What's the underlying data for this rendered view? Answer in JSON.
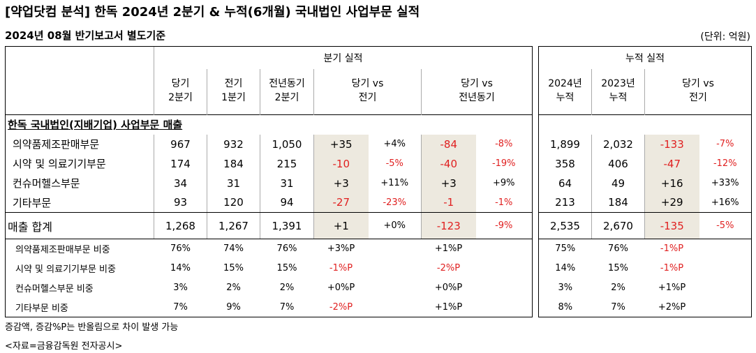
{
  "title": "[약업닷컴 분석] 한독 2024년 2분기 & 누적(6개월) 국내법인 사업부문 실적",
  "subtitle": "2024년 08월 반기보고서 별도기준",
  "unit": "(단위: 억원)",
  "quarter": {
    "group_header": "분기 실적",
    "col_headers": [
      {
        "line1": "당기",
        "line2": "2분기"
      },
      {
        "line1": "전기",
        "line2": "1분기"
      },
      {
        "line1": "전년동기",
        "line2": "2분기"
      },
      {
        "line1": "당기 vs",
        "line2": "전기"
      },
      {
        "line1": "당기 vs",
        "line2": "전년동기"
      }
    ]
  },
  "cumulative": {
    "group_header": "누적 실적",
    "col_headers": [
      {
        "line1": "2024년",
        "line2": "누적"
      },
      {
        "line1": "2023년",
        "line2": "누적"
      },
      {
        "line1": "당기 vs",
        "line2": "전기"
      }
    ]
  },
  "section_header": "한독 국내법인(지배기업) 사업부문 매출",
  "rows": [
    {
      "label": "의약품제조판매부문",
      "q_cur": "967",
      "q_prev": "932",
      "q_yoy": "1,050",
      "d_qoq": "+35",
      "p_qoq": "+4%",
      "d_yoy": "-84",
      "p_yoy": "-8%",
      "c_cur": "1,899",
      "c_prev": "2,032",
      "c_d": "-133",
      "c_p": "-7%"
    },
    {
      "label": "시약 및 의료기기부문",
      "q_cur": "174",
      "q_prev": "184",
      "q_yoy": "215",
      "d_qoq": "-10",
      "p_qoq": "-5%",
      "d_yoy": "-40",
      "p_yoy": "-19%",
      "c_cur": "358",
      "c_prev": "406",
      "c_d": "-47",
      "c_p": "-12%"
    },
    {
      "label": "컨슈머헬스부문",
      "q_cur": "34",
      "q_prev": "31",
      "q_yoy": "31",
      "d_qoq": "+3",
      "p_qoq": "+11%",
      "d_yoy": "+3",
      "p_yoy": "+9%",
      "c_cur": "64",
      "c_prev": "49",
      "c_d": "+16",
      "c_p": "+33%"
    },
    {
      "label": "기타부문",
      "q_cur": "93",
      "q_prev": "120",
      "q_yoy": "94",
      "d_qoq": "-27",
      "p_qoq": "-23%",
      "d_yoy": "-1",
      "p_yoy": "-1%",
      "c_cur": "213",
      "c_prev": "184",
      "c_d": "+29",
      "c_p": "+16%"
    }
  ],
  "total": {
    "label": "매출 합계",
    "q_cur": "1,268",
    "q_prev": "1,267",
    "q_yoy": "1,391",
    "d_qoq": "+1",
    "p_qoq": "+0%",
    "d_yoy": "-123",
    "p_yoy": "-9%",
    "c_cur": "2,535",
    "c_prev": "2,670",
    "c_d": "-135",
    "c_p": "-5%"
  },
  "ratios": [
    {
      "label": "의약품제조판매부문 비중",
      "q_cur": "76%",
      "q_prev": "74%",
      "q_yoy": "76%",
      "d_qoq": "+3%P",
      "d_yoy": "+1%P",
      "c_cur": "75%",
      "c_prev": "76%",
      "c_d": "-1%P"
    },
    {
      "label": "시약 및 의료기기부문 비중",
      "q_cur": "14%",
      "q_prev": "15%",
      "q_yoy": "15%",
      "d_qoq": "-1%P",
      "d_yoy": "-2%P",
      "c_cur": "14%",
      "c_prev": "15%",
      "c_d": "-1%P"
    },
    {
      "label": "컨슈머헬스부문 비중",
      "q_cur": "3%",
      "q_prev": "2%",
      "q_yoy": "2%",
      "d_qoq": "+0%P",
      "d_yoy": "+0%P",
      "c_cur": "3%",
      "c_prev": "2%",
      "c_d": "+1%P"
    },
    {
      "label": "기타부문 비중",
      "q_cur": "7%",
      "q_prev": "9%",
      "q_yoy": "7%",
      "d_qoq": "-2%P",
      "d_yoy": "+1%P",
      "c_cur": "8%",
      "c_prev": "7%",
      "c_d": "+2%P"
    }
  ],
  "notes": [
    "증감액, 증감%P는 반올림으로 차이 발생 가능",
    "<자료=금융감독원 전자공시>"
  ],
  "colors": {
    "negative": "#e02020",
    "shade": "#ede9df"
  }
}
